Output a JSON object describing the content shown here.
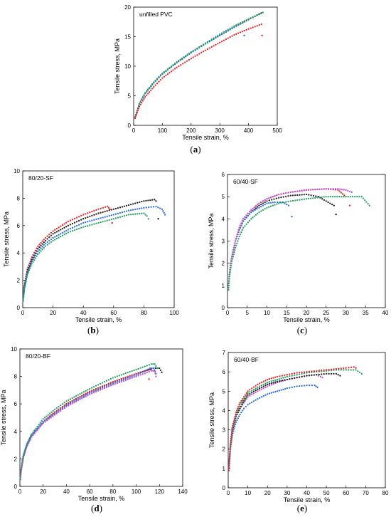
{
  "series_colors": {
    "black": "#222222",
    "red": "#e8262b",
    "blue": "#2c6fe0",
    "green": "#27a063",
    "magenta": "#c24dd6"
  },
  "chart_data": [
    {
      "id": "a",
      "caption": "a",
      "type": "scatter",
      "title": "unfilled PVC",
      "xlabel": "Tensile strain, %",
      "ylabel": "Tensile stress, MPa",
      "xlim": [
        0,
        500
      ],
      "ylim": [
        0,
        20
      ],
      "xticks": [
        0,
        100,
        200,
        300,
        400,
        500
      ],
      "yticks": [
        0,
        5,
        10,
        15,
        20
      ],
      "series": [
        {
          "color": "black",
          "x": [
            5,
            20,
            40,
            70,
            100,
            150,
            200,
            250,
            300,
            350,
            400,
            445
          ],
          "y": [
            1.4,
            3.6,
            5.4,
            7.2,
            8.7,
            10.6,
            12.3,
            13.8,
            15.2,
            16.6,
            17.9,
            19.0
          ]
        },
        {
          "color": "blue",
          "x": [
            5,
            20,
            40,
            70,
            100,
            150,
            200,
            250,
            300,
            350,
            380
          ],
          "y": [
            1.4,
            3.6,
            5.4,
            7.2,
            8.7,
            10.6,
            12.3,
            13.8,
            15.2,
            16.6,
            17.4
          ],
          "break": [
            385,
            15.2
          ]
        },
        {
          "color": "green",
          "x": [
            5,
            20,
            40,
            70,
            100,
            150,
            200,
            250,
            300,
            350,
            400,
            450
          ],
          "y": [
            1.4,
            3.7,
            5.5,
            7.3,
            8.8,
            10.7,
            12.4,
            13.9,
            15.4,
            16.8,
            18.0,
            19.1
          ]
        },
        {
          "color": "red",
          "x": [
            5,
            20,
            40,
            70,
            100,
            150,
            200,
            250,
            300,
            350,
            400,
            445
          ],
          "y": [
            1.2,
            3.2,
            4.8,
            6.5,
            8.0,
            9.8,
            11.3,
            12.7,
            14.0,
            15.3,
            16.3,
            17.1
          ],
          "break": [
            447,
            15.2
          ]
        }
      ]
    },
    {
      "id": "b",
      "caption": "b",
      "type": "scatter",
      "title": "80/20-SF",
      "xlabel": "Tensile strain, %",
      "ylabel": "Tensile stress, MPa",
      "xlim": [
        0,
        100
      ],
      "ylim": [
        0,
        10
      ],
      "xticks": [
        0,
        20,
        40,
        60,
        80,
        100
      ],
      "yticks": [
        0,
        2,
        4,
        6,
        8,
        10
      ],
      "series": [
        {
          "color": "red",
          "x": [
            0.3,
            1,
            3,
            6,
            10,
            15,
            20,
            30,
            40,
            50,
            56,
            57.5
          ],
          "y": [
            0.5,
            1.6,
            2.8,
            3.7,
            4.5,
            5.1,
            5.6,
            6.3,
            6.8,
            7.2,
            7.4,
            7.2
          ],
          "break": [
            59,
            6.2
          ]
        },
        {
          "color": "black",
          "x": [
            0.3,
            1,
            3,
            6,
            10,
            15,
            20,
            30,
            40,
            50,
            60,
            70,
            80,
            87,
            88
          ],
          "y": [
            0.5,
            1.5,
            2.6,
            3.5,
            4.3,
            4.9,
            5.4,
            6.0,
            6.5,
            6.9,
            7.2,
            7.5,
            7.8,
            7.9,
            7.8
          ],
          "break": [
            89.5,
            6.5
          ]
        },
        {
          "color": "blue",
          "x": [
            0.3,
            1,
            3,
            6,
            10,
            15,
            20,
            30,
            40,
            50,
            60,
            70,
            80,
            88,
            92,
            94
          ],
          "y": [
            0.5,
            1.4,
            2.5,
            3.4,
            4.1,
            4.7,
            5.1,
            5.7,
            6.2,
            6.5,
            6.8,
            7.1,
            7.3,
            7.4,
            7.2,
            6.8
          ]
        },
        {
          "color": "green",
          "x": [
            0.3,
            1,
            3,
            6,
            10,
            15,
            20,
            30,
            40,
            50,
            60,
            70,
            80,
            82
          ],
          "y": [
            0.5,
            1.3,
            2.4,
            3.2,
            3.9,
            4.5,
            4.9,
            5.5,
            5.9,
            6.2,
            6.5,
            6.8,
            6.9,
            6.7
          ],
          "break": [
            83,
            6.5
          ]
        }
      ]
    },
    {
      "id": "c",
      "caption": "c",
      "type": "scatter",
      "title": "60/40-SF",
      "xlabel": "Tensile strain, %",
      "ylabel": "Tensile stress, MPa",
      "xlim": [
        0,
        40
      ],
      "ylim": [
        0,
        6
      ],
      "xticks": [
        0,
        5,
        10,
        15,
        20,
        25,
        30,
        35,
        40
      ],
      "yticks": [
        0,
        1,
        2,
        3,
        4,
        5,
        6
      ],
      "series": [
        {
          "color": "black",
          "x": [
            0.2,
            0.5,
            1,
            2,
            3,
            4,
            6,
            8,
            10,
            13,
            16,
            20,
            23,
            25,
            27
          ],
          "y": [
            0.8,
            1.5,
            2.2,
            3.0,
            3.5,
            3.9,
            4.3,
            4.6,
            4.8,
            4.95,
            5.05,
            5.1,
            5.0,
            4.8,
            4.6
          ],
          "break": [
            27.5,
            4.2
          ]
        },
        {
          "color": "red",
          "x": [
            0.2,
            0.5,
            1,
            2,
            3,
            4,
            6,
            8,
            10,
            13,
            16,
            20,
            25,
            28,
            30
          ],
          "y": [
            0.8,
            1.5,
            2.2,
            3.0,
            3.6,
            4.0,
            4.4,
            4.7,
            4.9,
            5.1,
            5.2,
            5.3,
            5.35,
            5.3,
            5.0
          ],
          "break": [
            31,
            4.6
          ]
        },
        {
          "color": "blue",
          "x": [
            0.2,
            0.5,
            1,
            2,
            3,
            4,
            6,
            8,
            10,
            12,
            14,
            15.5
          ],
          "y": [
            0.8,
            1.5,
            2.2,
            3.0,
            3.5,
            3.9,
            4.3,
            4.5,
            4.7,
            4.75,
            4.75,
            4.6
          ],
          "break": [
            16.3,
            4.1
          ]
        },
        {
          "color": "magenta",
          "x": [
            0.2,
            0.5,
            1,
            2,
            3,
            4,
            6,
            8,
            10,
            13,
            16,
            20,
            25,
            28,
            30,
            31.5
          ],
          "y": [
            0.8,
            1.5,
            2.2,
            3.0,
            3.6,
            4.0,
            4.4,
            4.7,
            4.9,
            5.1,
            5.2,
            5.3,
            5.35,
            5.35,
            5.3,
            5.2
          ]
        },
        {
          "color": "green",
          "x": [
            0.2,
            0.5,
            1,
            2,
            3,
            4,
            6,
            8,
            10,
            13,
            16,
            20,
            25,
            30,
            34,
            36
          ],
          "y": [
            0.8,
            1.4,
            2.0,
            2.7,
            3.2,
            3.6,
            4.0,
            4.3,
            4.5,
            4.7,
            4.8,
            4.9,
            5.0,
            5.0,
            5.0,
            4.6
          ]
        }
      ]
    },
    {
      "id": "d",
      "caption": "d",
      "type": "scatter",
      "title": "80/20-BF",
      "xlabel": "Tensile strain, %",
      "ylabel": "Tensile stress, MPa",
      "xlim": [
        0,
        140
      ],
      "ylim": [
        0,
        10
      ],
      "xticks": [
        0,
        20,
        40,
        60,
        80,
        100,
        120,
        140
      ],
      "yticks": [
        0,
        2,
        4,
        6,
        8,
        10
      ],
      "series": [
        {
          "color": "black",
          "x": [
            0.3,
            1,
            3,
            6,
            10,
            20,
            30,
            40,
            60,
            80,
            100,
            115,
            120,
            122
          ],
          "y": [
            0.5,
            1.2,
            2.2,
            3.0,
            3.7,
            4.7,
            5.4,
            6.0,
            6.9,
            7.6,
            8.2,
            8.6,
            8.6,
            8.3
          ]
        },
        {
          "color": "red",
          "x": [
            0.3,
            1,
            3,
            6,
            10,
            20,
            30,
            40,
            60,
            80,
            100,
            112
          ],
          "y": [
            0.5,
            1.2,
            2.2,
            3.0,
            3.7,
            4.7,
            5.4,
            6.0,
            6.9,
            7.6,
            8.2,
            8.5
          ],
          "break": [
            111,
            7.8
          ]
        },
        {
          "color": "blue",
          "x": [
            0.3,
            1,
            3,
            6,
            10,
            20,
            30,
            40,
            60,
            80,
            100,
            112,
            115,
            117
          ],
          "y": [
            0.5,
            1.2,
            2.2,
            3.0,
            3.7,
            4.7,
            5.3,
            5.9,
            6.8,
            7.5,
            8.1,
            8.6,
            8.6,
            8.2
          ]
        },
        {
          "color": "magenta",
          "x": [
            0.3,
            1,
            3,
            6,
            10,
            20,
            30,
            40,
            60,
            80,
            100,
            113,
            116,
            117
          ],
          "y": [
            0.5,
            1.1,
            2.1,
            2.9,
            3.6,
            4.6,
            5.2,
            5.8,
            6.7,
            7.4,
            8.0,
            8.4,
            8.4,
            8.0
          ]
        },
        {
          "color": "green",
          "x": [
            0.3,
            1,
            3,
            6,
            10,
            20,
            30,
            40,
            60,
            80,
            100,
            113,
            116,
            118
          ],
          "y": [
            0.5,
            1.2,
            2.3,
            3.1,
            3.8,
            4.9,
            5.6,
            6.2,
            7.1,
            7.9,
            8.5,
            8.9,
            8.9,
            8.6
          ]
        }
      ]
    },
    {
      "id": "e",
      "caption": "e",
      "type": "scatter",
      "title": "60/40-BF",
      "xlabel": "Tensile strain, %",
      "ylabel": "Tensile stress, MPa",
      "xlim": [
        0,
        80
      ],
      "ylim": [
        0,
        7
      ],
      "xticks": [
        0,
        10,
        20,
        30,
        40,
        50,
        60,
        70,
        80
      ],
      "yticks": [
        0,
        1,
        2,
        3,
        4,
        5,
        6,
        7
      ],
      "series": [
        {
          "color": "blue",
          "x": [
            0.3,
            1,
            2,
            4,
            6,
            8,
            10,
            15,
            20,
            25,
            30,
            35,
            40,
            44,
            45.5
          ],
          "y": [
            0.9,
            1.9,
            2.7,
            3.4,
            3.8,
            4.1,
            4.3,
            4.6,
            4.85,
            5.0,
            5.15,
            5.25,
            5.3,
            5.3,
            5.2
          ]
        },
        {
          "color": "magenta",
          "x": [
            0.3,
            1,
            2,
            4,
            6,
            8,
            10,
            15,
            20,
            25,
            30,
            35,
            40,
            45,
            48
          ],
          "y": [
            0.9,
            2.0,
            2.9,
            3.7,
            4.1,
            4.4,
            4.7,
            5.0,
            5.25,
            5.45,
            5.6,
            5.7,
            5.8,
            5.85,
            5.7
          ]
        },
        {
          "color": "black",
          "x": [
            0.3,
            1,
            2,
            4,
            6,
            8,
            10,
            15,
            20,
            25,
            30,
            35,
            40,
            45,
            50,
            55,
            57
          ],
          "y": [
            0.9,
            2.0,
            2.9,
            3.7,
            4.1,
            4.5,
            4.8,
            5.1,
            5.35,
            5.5,
            5.6,
            5.7,
            5.8,
            5.85,
            5.9,
            5.9,
            5.8
          ]
        },
        {
          "color": "green",
          "x": [
            0.3,
            1,
            2,
            4,
            6,
            8,
            10,
            15,
            20,
            25,
            30,
            35,
            40,
            45,
            50,
            55,
            60,
            65,
            68
          ],
          "y": [
            0.9,
            2.0,
            3.0,
            3.8,
            4.3,
            4.6,
            4.9,
            5.2,
            5.45,
            5.6,
            5.75,
            5.85,
            5.95,
            6.0,
            6.05,
            6.1,
            6.1,
            6.1,
            5.9
          ]
        },
        {
          "color": "red",
          "x": [
            0.3,
            1,
            2,
            4,
            6,
            8,
            10,
            15,
            20,
            25,
            30,
            35,
            40,
            45,
            50,
            55,
            60,
            64,
            65
          ],
          "y": [
            0.9,
            2.1,
            3.1,
            3.9,
            4.4,
            4.7,
            5.0,
            5.35,
            5.6,
            5.75,
            5.85,
            5.95,
            6.0,
            6.05,
            6.1,
            6.15,
            6.2,
            6.25,
            6.2
          ]
        }
      ]
    }
  ]
}
